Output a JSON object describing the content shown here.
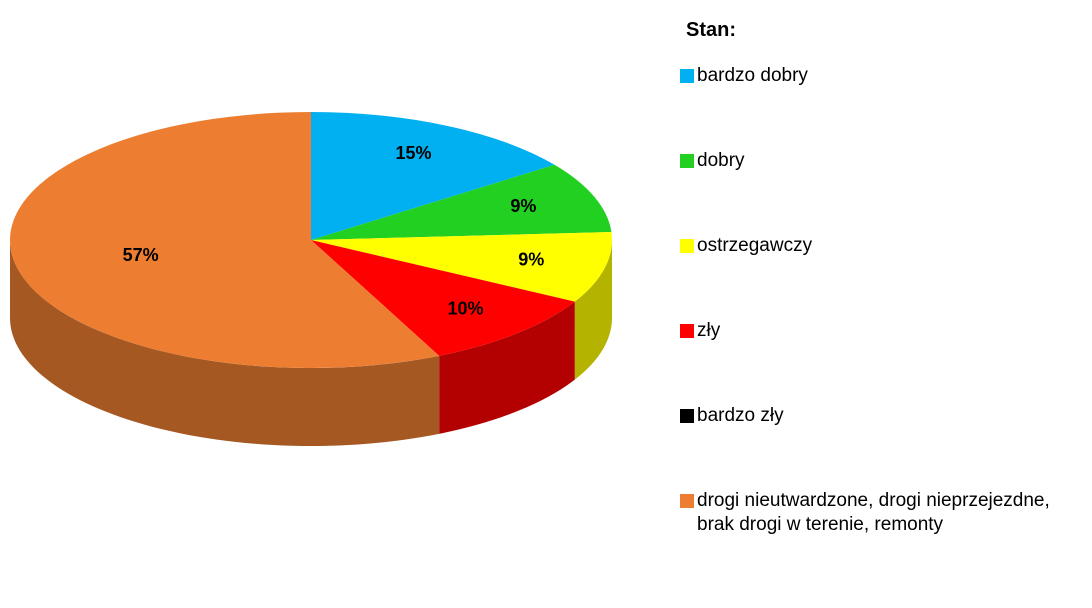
{
  "chart_data": {
    "type": "pie",
    "legend_title": "Stan:",
    "categories": [
      "bardzo dobry",
      "dobry",
      "ostrzegawczy",
      "zły",
      "bardzo zły",
      "drogi nieutwardzone, drogi nieprzejezdne, brak drogi w terenie, remonty"
    ],
    "values": [
      15,
      9,
      9,
      10,
      0,
      57
    ],
    "value_labels": [
      "15%",
      "9%",
      "9%",
      "10%",
      null,
      "57%"
    ],
    "colors": [
      "#00b0f0",
      "#22d022",
      "#ffff00",
      "#ff0000",
      "#000000",
      "#ed7d31"
    ],
    "legend": "right"
  }
}
